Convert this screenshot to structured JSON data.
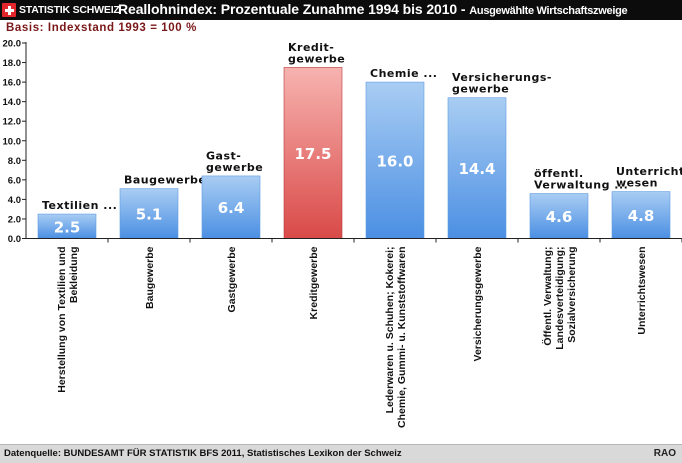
{
  "header": {
    "logo_text": "STATISTIK SCHWEIZ",
    "title": "Reallohnindex: Prozentuale Zunahme 1994 bis 2010 -",
    "subtitle": "Ausgewählte Wirtschaftszweige",
    "basis": "Basis: Indexstand 1993 = 100 %"
  },
  "footer": {
    "source": "Datenquelle: BUNDESAMT FÜR STATISTIK BFS 2011, Statistisches Lexikon der Schweiz",
    "credit": "RAO"
  },
  "colors": {
    "bar_blue_top": "#a9cdf3",
    "bar_blue_bottom": "#4b8fe3",
    "bar_red_top": "#f7b3b0",
    "bar_red_bottom": "#d94a48",
    "header_bg": "#0c0c0c",
    "basis_text": "#7a1718"
  },
  "chart_data": {
    "type": "bar",
    "title": "Reallohnindex: Prozentuale Zunahme 1994 bis 2010 -",
    "subtitle": "Ausgewählte Wirtschaftszweige",
    "ylim": [
      0,
      20
    ],
    "yticks": [
      "0.0",
      "2.0",
      "4.0",
      "6.0",
      "8.0",
      "10.0",
      "12.0",
      "14.0",
      "16.0",
      "18.0",
      "20.0"
    ],
    "grid": false,
    "categories": [
      [
        "Herstellung von Textilien und",
        "Bekleidung"
      ],
      [
        "Baugewerbe"
      ],
      [
        "Gastgewerbe"
      ],
      [
        "Kreditgewerbe"
      ],
      [
        "Lederwaren u. Schuhen; Kokerei;",
        "Chemie, Gummi- u. Kunststoffwaren"
      ],
      [
        "Versicherungsgewerbe"
      ],
      [
        "Öffentl. Verwaltung;",
        "Landesverteidigung;",
        "Sozialversicherung"
      ],
      [
        "Unterrichtswesen"
      ]
    ],
    "short_labels": [
      [
        "Textilien ..."
      ],
      [
        "Baugewerbe"
      ],
      [
        "Gast-",
        "gewerbe"
      ],
      [
        "Kredit-",
        "gewerbe"
      ],
      [
        "Chemie ..."
      ],
      [
        "Versicherungs-",
        "gewerbe"
      ],
      [
        "öffentl.",
        "Verwaltung ..."
      ],
      [
        "Unterrichts-",
        "wesen"
      ]
    ],
    "values": [
      2.5,
      5.1,
      6.4,
      17.5,
      16.0,
      14.4,
      4.6,
      4.8
    ],
    "value_labels": [
      "2.5",
      "5.1",
      "6.4",
      "17.5",
      "16.0",
      "14.4",
      "4.6",
      "4.8"
    ],
    "highlight": [
      false,
      false,
      false,
      true,
      false,
      false,
      false,
      false
    ]
  }
}
